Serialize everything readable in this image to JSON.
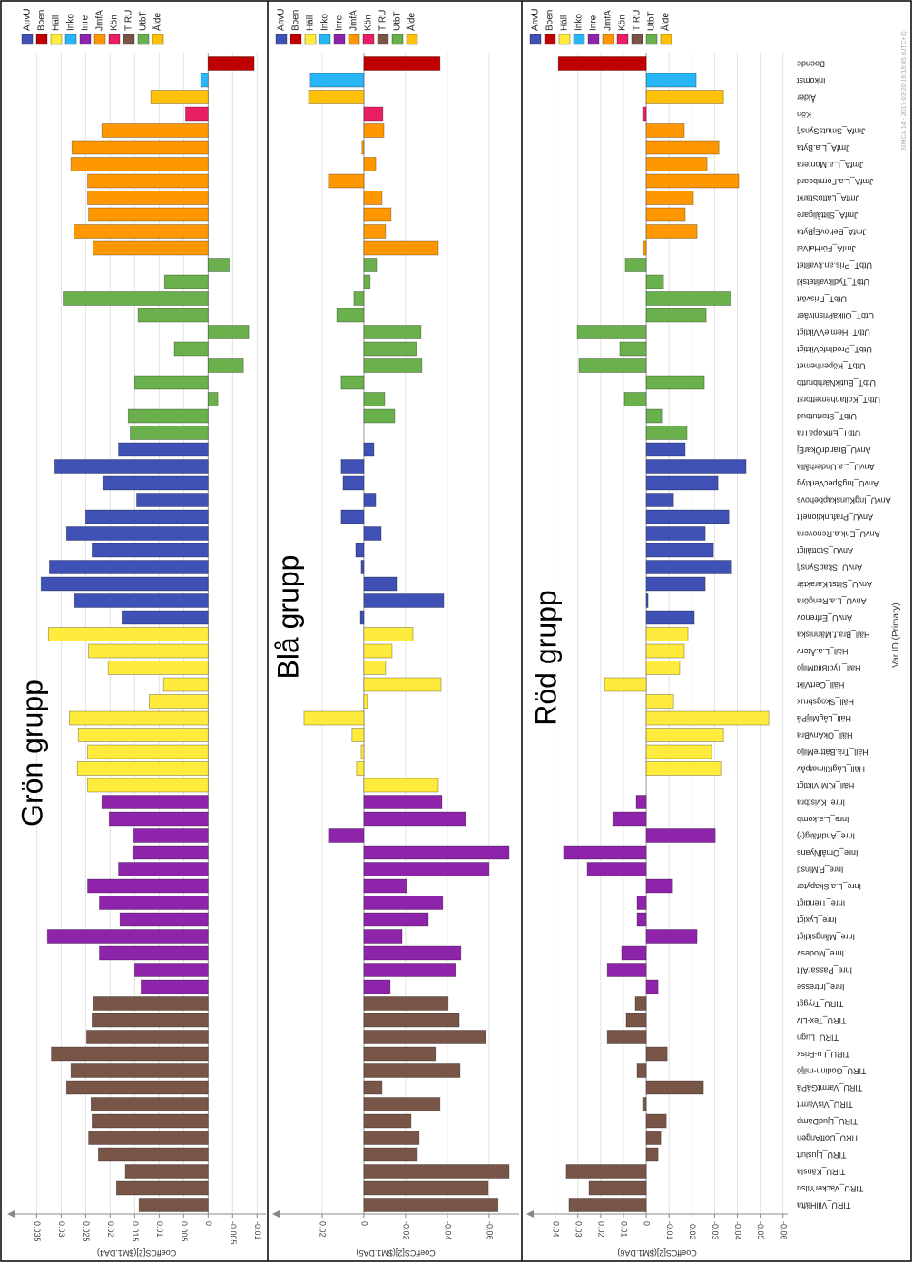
{
  "chart_data": {
    "type": "bar",
    "category_axis_label": "Var ID (Primary)",
    "watermark": "SIMCA 14 - 2017-03-20 16:18:45 (UTC+1)",
    "legend": [
      {
        "name": "AnvU",
        "color": "#3f51b5"
      },
      {
        "name": "Boen",
        "color": "#c00000"
      },
      {
        "name": "Häll",
        "color": "#ffeb3b"
      },
      {
        "name": "Inko",
        "color": "#29b6f6"
      },
      {
        "name": "Inre",
        "color": "#8e24aa"
      },
      {
        "name": "JmfA",
        "color": "#ff9800"
      },
      {
        "name": "Kön",
        "color": "#e91e63"
      },
      {
        "name": "TIRU",
        "color": "#795548"
      },
      {
        "name": "UtbT",
        "color": "#6ab04c"
      },
      {
        "name": "Ålde",
        "color": "#ffc107"
      }
    ],
    "categories": [
      "Boende",
      "Inkomst",
      "Ålder",
      "Kön",
      "JmfA_SmutsSynsfj",
      "JmfA_L.a.Byta",
      "JmfA_L.a.Montera",
      "JmfA_L.a.Formbeard",
      "JmfA_LättoStarkt",
      "JmfA_Slittåligare",
      "JmfA_BehovEjByta",
      "JmfA_FörHalVal",
      "UtbT_Pris.an.kvalitet",
      "UtbT_Tydlkvalitetskl",
      "UtbT_Prisvärt",
      "UtbT_OlikaPrisnivåer",
      "UtbT_HemleVViktigt",
      "UtbT_ProdInfoViktigt",
      "UtbT_Köpenhemet",
      "UtbT_ButikNärhbruttb",
      "UtbT_Kollanhemettorst",
      "UtbT_Stortutbud",
      "UtbT_ErfKöpaTrä",
      "AnvU_BrandrÖkarEj",
      "AnvU_L.a.Underhålla",
      "AnvU_IngSpecVerktyg",
      "AnvU_IngKunskapbehovs",
      "AnvU_Prafunktionellt",
      "AnvU_Enk.a.Renovera",
      "AnvU_Stottåligt",
      "AnvU_SkadSynsfj",
      "AnvU_Slitst.Karaktär",
      "AnvU_L.a.Rengöra",
      "AnvU_Erfrenov",
      "Häll_Bra.f.Människa",
      "Häll_L.a.Återv",
      "Häll_TydlBildMiljo",
      "Häll_CertVikt",
      "Häll_Skogsbruk",
      "Häll_LågMiljPå",
      "Häll_ÖkAnvBra",
      "Häll_Trä.BättreMiljo",
      "Häll_LågKlimatpåv",
      "Häll_K.M.Viktigt",
      "Inre_Kvistbra",
      "Inre_L.a.komb",
      "Inre_Andrfärg(-)",
      "Inre_OmålNyans",
      "Inre_P.Minstl",
      "Inre_L.a.Skapytor",
      "Inre_Trendigt",
      "Inre_Lyxigt",
      "Inre_Mångsidigt",
      "Inre_Modesv",
      "Inre_PassarAllt",
      "Inre_Intresse",
      "TIRU_Tryggt",
      "TIRU_Tex-Liv",
      "TIRU_Lugn",
      "TIRU_Lu-Frisk",
      "TIRU_Godinh-miljö",
      "TIRU_VarmtGåPå",
      "TIRU_VisVarmt",
      "TIRU_LjudDämp",
      "TIRU_DoftAngen",
      "TIRU_Ljusluft",
      "TIRU_Känsla",
      "TIRU_VackerYtlsu",
      "TIRU_VillHäfta"
    ],
    "category_groups": [
      1,
      3,
      9,
      6,
      5,
      5,
      5,
      5,
      5,
      5,
      5,
      5,
      8,
      8,
      8,
      8,
      8,
      8,
      8,
      8,
      8,
      8,
      8,
      0,
      0,
      0,
      0,
      0,
      0,
      0,
      0,
      0,
      0,
      0,
      2,
      2,
      2,
      2,
      2,
      2,
      2,
      2,
      2,
      2,
      4,
      4,
      4,
      4,
      4,
      4,
      4,
      4,
      4,
      4,
      4,
      4,
      7,
      7,
      7,
      7,
      7,
      7,
      7,
      7,
      7,
      7,
      7,
      7,
      7
    ],
    "panels": [
      {
        "title": "Grön grupp",
        "value_axis_label": "CoeffCS[2]($M1.DA4)",
        "xlim": [
          0.041,
          -0.0118
        ],
        "xticks": [
          0.035,
          0.03,
          0.025,
          0.02,
          0.015,
          0.01,
          0.005,
          0,
          -0.005,
          -0.01
        ],
        "values": [
          -0.0094,
          0.0015,
          0.0117,
          0.0046,
          0.0217,
          0.0278,
          0.028,
          0.0246,
          0.0246,
          0.0244,
          0.0274,
          0.0235,
          -0.0043,
          0.0089,
          0.0296,
          0.0143,
          -0.0083,
          0.0069,
          -0.0072,
          0.015,
          -0.002,
          0.0163,
          0.0159,
          0.0183,
          0.0313,
          0.0215,
          0.0146,
          0.025,
          0.0289,
          0.0237,
          0.0324,
          0.0341,
          0.0274,
          0.0176,
          0.0326,
          0.0244,
          0.0204,
          0.0091,
          0.012,
          0.0283,
          0.0265,
          0.0246,
          0.0267,
          0.0246,
          0.0217,
          0.0202,
          0.0152,
          0.0154,
          0.0183,
          0.0246,
          0.0222,
          0.018,
          0.0328,
          0.0222,
          0.015,
          0.0137,
          0.0235,
          0.0237,
          0.0248,
          0.032,
          0.028,
          0.0289,
          0.0239,
          0.0237,
          0.0244,
          0.0224,
          0.0169,
          0.0187,
          0.0141
        ]
      },
      {
        "title": "Blå grupp",
        "value_axis_label": "CoeffCS[2]($M1.DA5)",
        "xlim": [
          0.0439,
          -0.0744
        ],
        "xticks": [
          0.02,
          0,
          -0.02,
          -0.04,
          -0.06
        ],
        "values": [
          -0.0365,
          0.0257,
          0.0265,
          -0.0091,
          -0.0096,
          0.0009,
          -0.0057,
          0.017,
          -0.0087,
          -0.013,
          -0.0104,
          -0.0357,
          -0.0061,
          -0.003,
          0.0048,
          0.013,
          -0.0274,
          -0.0252,
          -0.0278,
          0.0109,
          -0.01,
          -0.0148,
          0,
          -0.0048,
          0.0109,
          0.01,
          -0.0057,
          0.0109,
          -0.0083,
          0.0039,
          0.0013,
          -0.0157,
          -0.0383,
          0.0017,
          -0.0235,
          -0.0135,
          -0.0104,
          -0.037,
          -0.0017,
          0.0287,
          0.0057,
          0.0013,
          0.0035,
          -0.0357,
          -0.0374,
          -0.0487,
          0.017,
          -0.0696,
          -0.06,
          -0.0204,
          -0.0378,
          -0.0309,
          -0.0183,
          -0.0465,
          -0.0439,
          -0.0126,
          -0.0404,
          -0.0457,
          -0.0583,
          -0.0343,
          -0.0461,
          -0.0087,
          -0.0365,
          -0.0226,
          -0.0265,
          -0.0257,
          -0.0696,
          -0.0596,
          -0.0643
        ]
      },
      {
        "title": "Röd grupp",
        "value_axis_label": "CoeffCS[2]($M1.DA6)",
        "xlim": [
          0.0526,
          -0.0621
        ],
        "xticks": [
          0.04,
          0.03,
          0.02,
          0.01,
          0,
          -0.01,
          -0.02,
          -0.03,
          -0.04,
          -0.05,
          -0.06
        ],
        "values": [
          0.0386,
          -0.0219,
          -0.0339,
          0.0016,
          -0.0167,
          -0.0319,
          -0.0267,
          -0.0406,
          -0.0207,
          -0.0171,
          -0.0223,
          0.0012,
          0.0092,
          -0.0076,
          -0.0371,
          -0.0263,
          0.0303,
          0.0116,
          0.0295,
          -0.0255,
          0.0096,
          -0.0068,
          -0.0179,
          -0.0171,
          -0.0438,
          -0.0315,
          -0.012,
          -0.0363,
          -0.0259,
          -0.0295,
          -0.0375,
          -0.0259,
          -0.0008,
          -0.0211,
          -0.0183,
          -0.0167,
          -0.0147,
          0.0183,
          -0.012,
          -0.0538,
          -0.0339,
          -0.0287,
          -0.0327,
          0,
          0.0044,
          0.0147,
          -0.0303,
          0.0363,
          0.0259,
          -0.0116,
          0.004,
          0.004,
          -0.0223,
          0.0108,
          0.0171,
          -0.0052,
          0.0048,
          0.0088,
          0.0171,
          -0.0092,
          0.004,
          -0.0251,
          0.0016,
          -0.0088,
          -0.0064,
          -0.0052,
          0.0351,
          0.0251,
          0.0339
        ]
      }
    ]
  }
}
